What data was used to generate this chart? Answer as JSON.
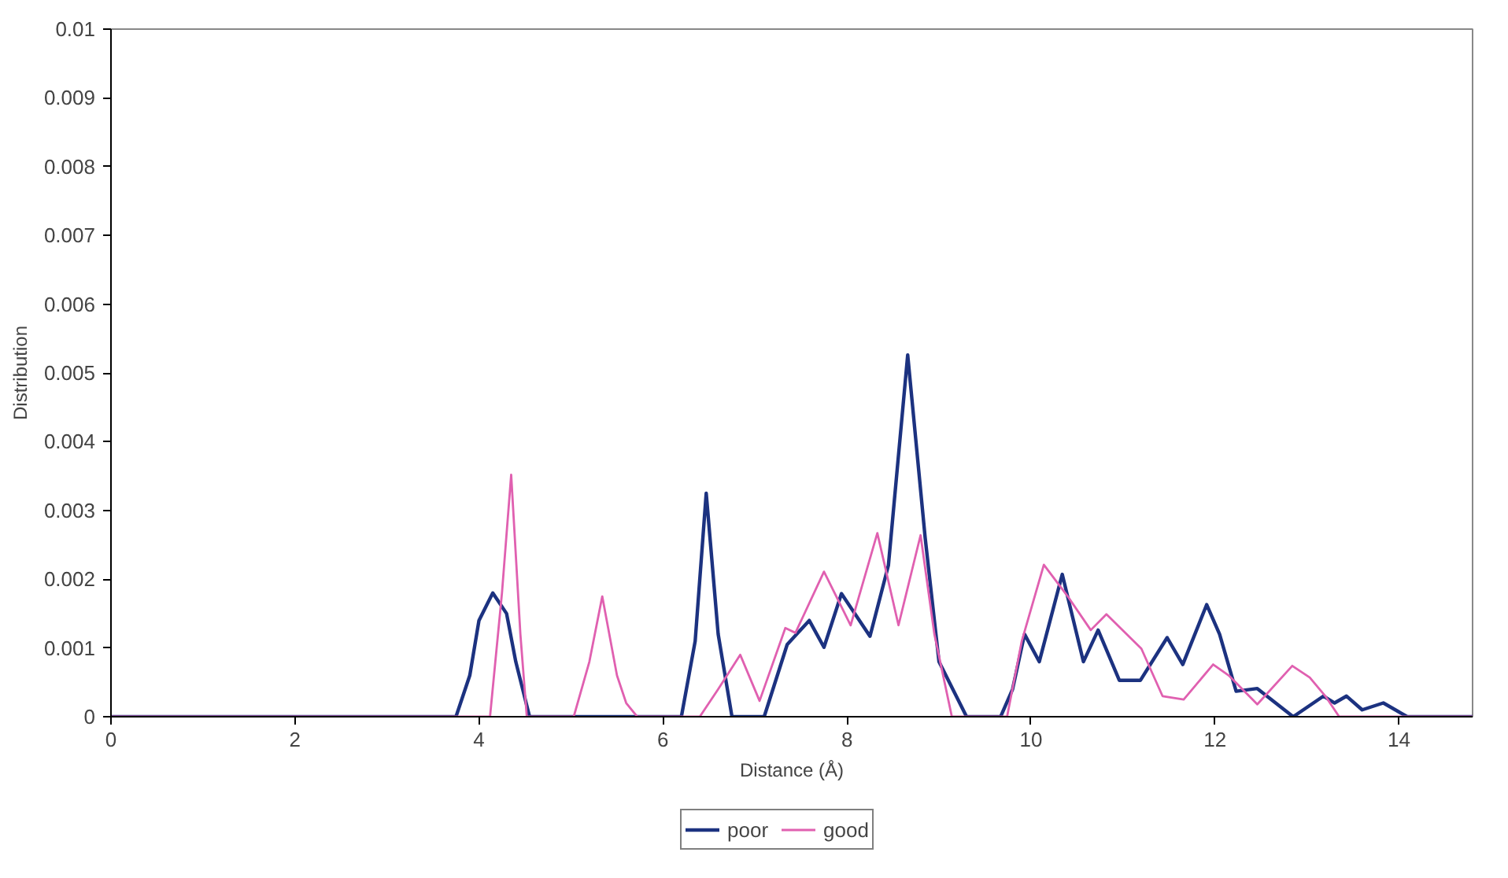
{
  "chart_data": {
    "type": "line",
    "xlabel": "Distance (Å)",
    "ylabel": "Distribution",
    "xlim": [
      0,
      14.8
    ],
    "ylim": [
      0,
      0.01
    ],
    "xticks": [
      0,
      2,
      4,
      6,
      8,
      10,
      12,
      14
    ],
    "yticks": [
      0,
      0.001,
      0.002,
      0.003,
      0.004,
      0.005,
      0.006,
      0.007,
      0.008,
      0.009,
      0.01
    ],
    "grid": false,
    "legend": "bottom",
    "marker": "none",
    "line_style": "solid",
    "series": [
      {
        "name": "poor",
        "color": "#1c3280",
        "x": [
          0,
          3.75,
          3.9,
          4.0,
          4.15,
          4.3,
          4.4,
          4.55,
          6.2,
          6.35,
          6.47,
          6.6,
          6.75,
          7.1,
          7.35,
          7.59,
          7.75,
          7.94,
          8.25,
          8.45,
          8.66,
          8.85,
          9.0,
          9.3,
          9.67,
          9.8,
          9.93,
          10.09,
          10.34,
          10.57,
          10.73,
          10.96,
          11.19,
          11.48,
          11.65,
          11.91,
          12.05,
          12.23,
          12.46,
          12.85,
          13.18,
          13.3,
          13.43,
          13.6,
          13.83,
          14.09,
          14.8
        ],
        "values": [
          0,
          0,
          0.0006,
          0.0014,
          0.0018,
          0.0015,
          0.0008,
          0,
          0,
          0.0011,
          0.00325,
          0.0012,
          0,
          0,
          0.00105,
          0.0014,
          0.00101,
          0.00179,
          0.00117,
          0.0022,
          0.00526,
          0.0026,
          0.0008,
          0,
          0,
          0.0004,
          0.0012,
          0.0008,
          0.00207,
          0.0008,
          0.00126,
          0.00053,
          0.00053,
          0.00115,
          0.00076,
          0.00163,
          0.0012,
          0.00037,
          0.00041,
          0,
          0.0003,
          0.0002,
          0.0003,
          0.0001,
          0.0002,
          0,
          0
        ]
      },
      {
        "name": "good",
        "color": "#e060b0",
        "x": [
          0,
          4.12,
          4.25,
          4.35,
          4.45,
          4.52,
          5.03,
          5.2,
          5.34,
          5.5,
          5.6,
          5.72,
          6.4,
          6.6,
          6.84,
          7.05,
          7.33,
          7.44,
          7.75,
          8.04,
          8.33,
          8.56,
          8.8,
          8.95,
          9.14,
          9.74,
          9.9,
          10.14,
          10.4,
          10.65,
          10.82,
          11.2,
          11.43,
          11.66,
          11.98,
          12.15,
          12.46,
          12.84,
          13.03,
          13.2,
          13.35,
          14.8
        ],
        "values": [
          0,
          0,
          0.0018,
          0.00352,
          0.0012,
          0,
          0,
          0.0008,
          0.00175,
          0.0006,
          0.0002,
          0,
          0,
          0.0004,
          0.0009,
          0.00023,
          0.00129,
          0.00122,
          0.00211,
          0.00133,
          0.00267,
          0.00133,
          0.00264,
          0.0012,
          0,
          0,
          0.0011,
          0.00221,
          0.00175,
          0.00126,
          0.00149,
          0.00099,
          0.0003,
          0.00025,
          0.00076,
          0.0006,
          0.00018,
          0.00074,
          0.00057,
          0.0003,
          0,
          0
        ]
      }
    ]
  }
}
